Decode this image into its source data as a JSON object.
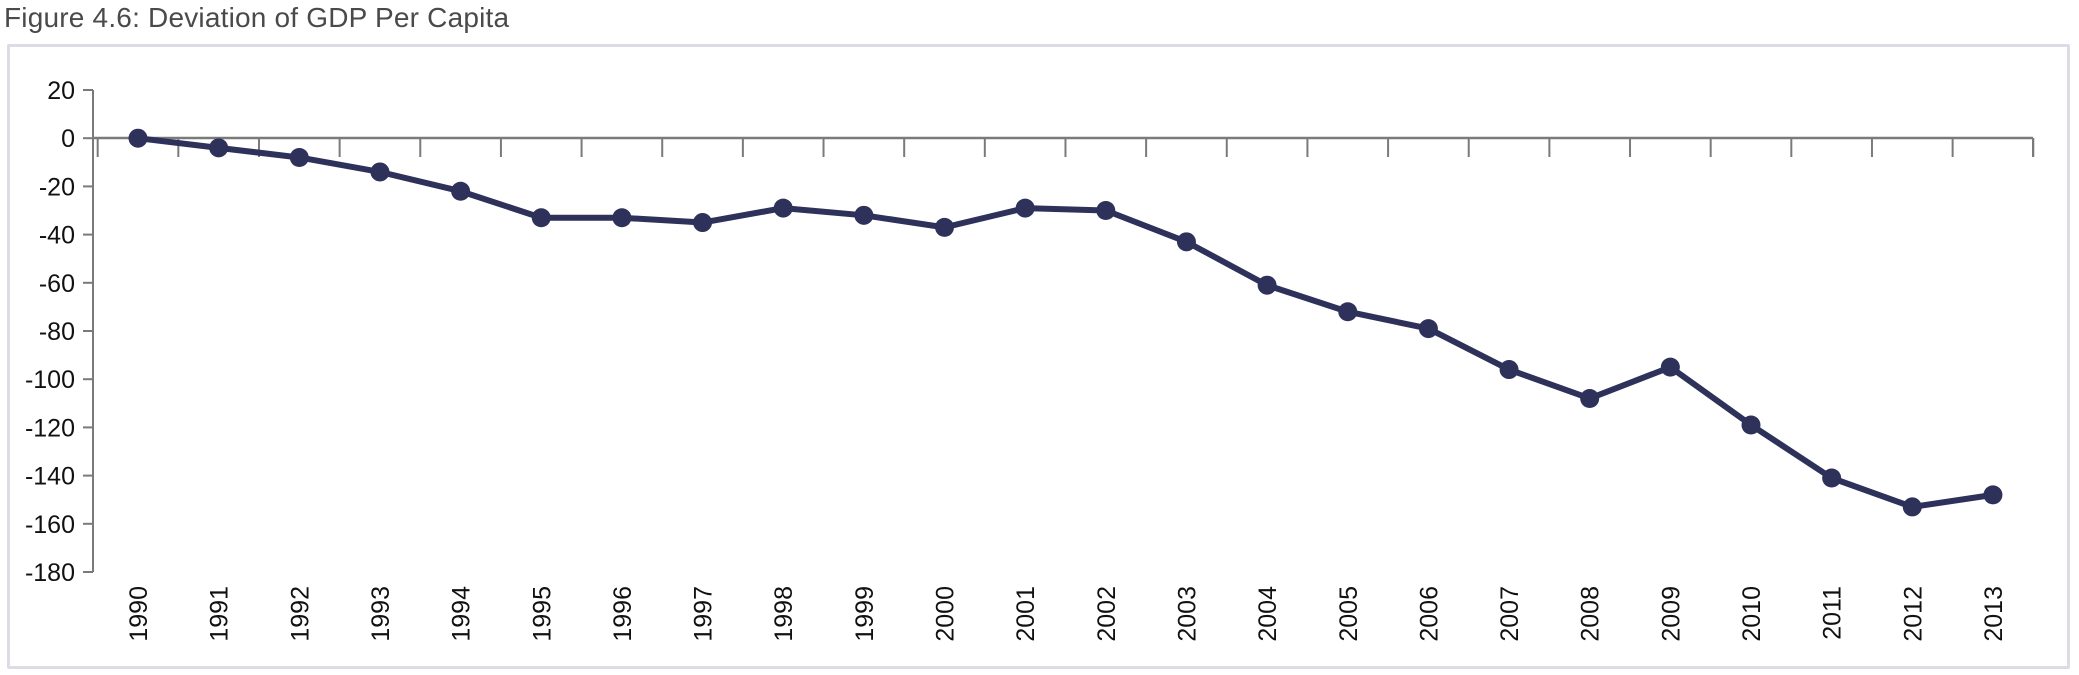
{
  "figure": {
    "title": "Figure 4.6: Deviation of GDP Per Capita"
  },
  "colors": {
    "series": "#2e3159",
    "axis": "#7a7a7a",
    "frame": "#dcdce6",
    "title": "#4a4a4a"
  },
  "chart_data": {
    "type": "line",
    "title": "Figure 4.6: Deviation of GDP Per Capita",
    "xlabel": "",
    "ylabel": "",
    "x": [
      1990,
      1991,
      1992,
      1993,
      1994,
      1995,
      1996,
      1997,
      1998,
      1999,
      2000,
      2001,
      2002,
      2003,
      2004,
      2005,
      2006,
      2007,
      2008,
      2009,
      2010,
      2011,
      2012,
      2013
    ],
    "x_tick_labels": [
      "1990",
      "1991",
      "1992",
      "1993",
      "1994",
      "1995",
      "1996",
      "1997",
      "1998",
      "1999",
      "2000",
      "2001",
      "2002",
      "2003",
      "2004",
      "2005",
      "2006",
      "2007",
      "2008",
      "2009",
      "2010",
      "2011",
      "2012",
      "2013"
    ],
    "series": [
      {
        "values": [
          0,
          -4,
          -8,
          -14,
          -22,
          -33,
          -33,
          -35,
          -29,
          -32,
          -37,
          -29,
          -30,
          -43,
          -61,
          -72,
          -79,
          -96,
          -108,
          -95,
          -119,
          -141,
          -153,
          -148
        ]
      }
    ],
    "ylim": [
      -180,
      20
    ],
    "y_ticks": [
      20,
      0,
      -20,
      -40,
      -60,
      -80,
      -100,
      -120,
      -140,
      -160,
      -180
    ],
    "y_tick_labels": [
      "20",
      "0",
      "-20",
      "-40",
      "-60",
      "-80",
      "-100",
      "-120",
      "-140",
      "-160",
      "-180"
    ],
    "grid": false,
    "legend": "none"
  }
}
